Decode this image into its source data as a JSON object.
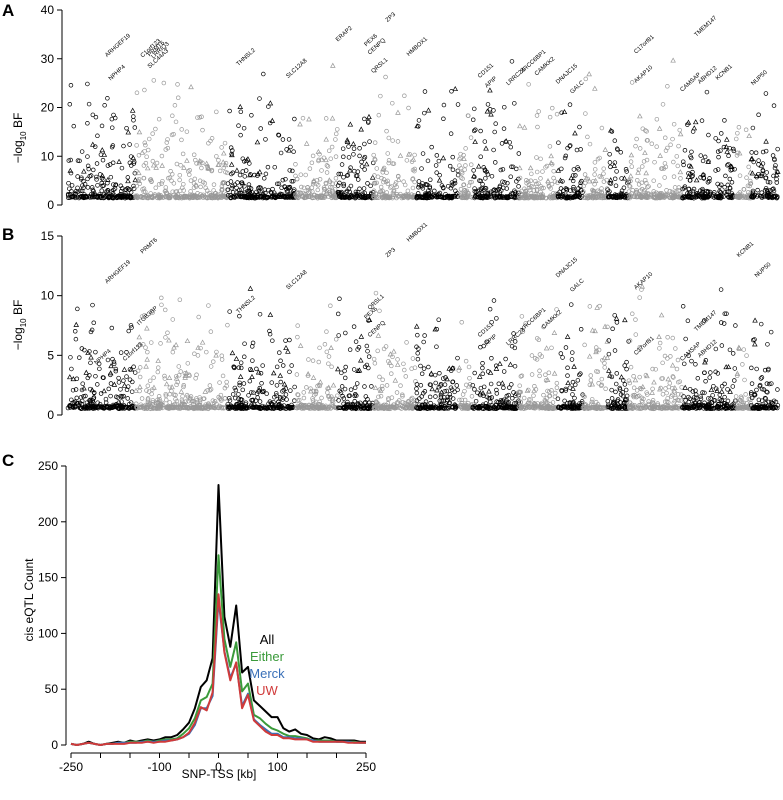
{
  "chart_data": [
    {
      "panel": "A",
      "type": "scatter",
      "ylabel_main": "−log",
      "ylabel_sub": "10",
      "ylabel_tail": " BF",
      "ylim": [
        0,
        40
      ],
      "yticks": [
        "0",
        "10",
        "20",
        "30",
        "40"
      ],
      "annotations": [
        {
          "text": "ARHGEF19",
          "x": 0.055,
          "y": 30.3
        },
        {
          "text": "C1orf123",
          "x": 0.105,
          "y": 30.2
        },
        {
          "text": "PRMT6",
          "x": 0.115,
          "y": 30.4
        },
        {
          "text": "LRRIQ3",
          "x": 0.12,
          "y": 30.0
        },
        {
          "text": "SLC44A3",
          "x": 0.115,
          "y": 28.0
        },
        {
          "text": "NPHP4",
          "x": 0.06,
          "y": 25.5
        },
        {
          "text": "THNSL2",
          "x": 0.24,
          "y": 28.5
        },
        {
          "text": "SLC12A8",
          "x": 0.31,
          "y": 26.0
        },
        {
          "text": "ERAP2",
          "x": 0.38,
          "y": 33.5
        },
        {
          "text": "ZP3",
          "x": 0.45,
          "y": 37.5
        },
        {
          "text": "PEX6",
          "x": 0.42,
          "y": 32.5
        },
        {
          "text": "CENPQ",
          "x": 0.425,
          "y": 30.8
        },
        {
          "text": "QRSL1",
          "x": 0.43,
          "y": 27.0
        },
        {
          "text": "HMBOX1",
          "x": 0.48,
          "y": 30.5
        },
        {
          "text": "CD151",
          "x": 0.58,
          "y": 26.0
        },
        {
          "text": "APIP",
          "x": 0.59,
          "y": 24.0
        },
        {
          "text": "LRRC23",
          "x": 0.62,
          "y": 24.5
        },
        {
          "text": "XRCC6BP1",
          "x": 0.64,
          "y": 27.0
        },
        {
          "text": "CAMKK2",
          "x": 0.66,
          "y": 26.5
        },
        {
          "text": "DNAJC15",
          "x": 0.69,
          "y": 24.8
        },
        {
          "text": "GALC",
          "x": 0.71,
          "y": 22.8
        },
        {
          "text": "C17orf81",
          "x": 0.8,
          "y": 31.0
        },
        {
          "text": "AKAP10",
          "x": 0.8,
          "y": 25.0
        },
        {
          "text": "TMEM147",
          "x": 0.885,
          "y": 34.5
        },
        {
          "text": "CAMSAP",
          "x": 0.865,
          "y": 23.2
        },
        {
          "text": "KCNB1",
          "x": 0.915,
          "y": 25.6
        },
        {
          "text": "ABHD12",
          "x": 0.89,
          "y": 24.8
        },
        {
          "text": "NUP50",
          "x": 0.965,
          "y": 24.5
        }
      ]
    },
    {
      "panel": "B",
      "type": "scatter",
      "ylabel_main": "−log",
      "ylabel_sub": "10",
      "ylabel_tail": " BF",
      "ylim": [
        0,
        15
      ],
      "yticks": [
        "0",
        "5",
        "10",
        "15"
      ],
      "annotations": [
        {
          "text": "ARHGEF19",
          "x": 0.055,
          "y": 11.0
        },
        {
          "text": "PRMT6",
          "x": 0.105,
          "y": 13.5
        },
        {
          "text": "ITGB3BP",
          "x": 0.1,
          "y": 7.5
        },
        {
          "text": "C1orf123",
          "x": 0.08,
          "y": 4.5
        },
        {
          "text": "NPHP4",
          "x": 0.04,
          "y": 4.2
        },
        {
          "text": "THNSL2",
          "x": 0.24,
          "y": 8.5
        },
        {
          "text": "SLC12A8",
          "x": 0.31,
          "y": 10.5
        },
        {
          "text": "ZP3",
          "x": 0.45,
          "y": 13.2
        },
        {
          "text": "HMBOX1",
          "x": 0.48,
          "y": 14.5
        },
        {
          "text": "QRSL1",
          "x": 0.425,
          "y": 8.8
        },
        {
          "text": "PEX6",
          "x": 0.42,
          "y": 8.0
        },
        {
          "text": "CENPQ",
          "x": 0.425,
          "y": 6.5
        },
        {
          "text": "CD151",
          "x": 0.58,
          "y": 6.5
        },
        {
          "text": "APIP",
          "x": 0.59,
          "y": 5.8
        },
        {
          "text": "LRRC23",
          "x": 0.62,
          "y": 5.8
        },
        {
          "text": "XRCC6BP1",
          "x": 0.64,
          "y": 7.0
        },
        {
          "text": "CAMKK2",
          "x": 0.67,
          "y": 7.2
        },
        {
          "text": "DNAJC15",
          "x": 0.69,
          "y": 11.5
        },
        {
          "text": "GALC",
          "x": 0.71,
          "y": 10.3
        },
        {
          "text": "AKAP10",
          "x": 0.8,
          "y": 10.5
        },
        {
          "text": "C17orf81",
          "x": 0.8,
          "y": 5.0
        },
        {
          "text": "TMEM147",
          "x": 0.885,
          "y": 7.0
        },
        {
          "text": "CAMSAP",
          "x": 0.865,
          "y": 4.5
        },
        {
          "text": "ABHD12",
          "x": 0.89,
          "y": 4.8
        },
        {
          "text": "KCNB1",
          "x": 0.945,
          "y": 13.2
        },
        {
          "text": "NUP50",
          "x": 0.97,
          "y": 11.5
        }
      ]
    },
    {
      "panel": "C",
      "type": "line",
      "xlabel": "SNP-TSS [kb]",
      "ylabel": "cis eQTL Count",
      "xlim": [
        -250,
        250
      ],
      "ylim": [
        0,
        250
      ],
      "xticks": [
        "-250",
        "-100",
        "0",
        "100",
        "250"
      ],
      "yticks": [
        "0",
        "50",
        "100",
        "150",
        "200",
        "250"
      ],
      "x": [
        -250,
        -240,
        -230,
        -220,
        -210,
        -200,
        -190,
        -180,
        -170,
        -160,
        -150,
        -140,
        -130,
        -120,
        -110,
        -100,
        -90,
        -80,
        -70,
        -60,
        -50,
        -40,
        -30,
        -20,
        -10,
        0,
        10,
        20,
        30,
        40,
        50,
        60,
        70,
        80,
        90,
        100,
        110,
        120,
        130,
        140,
        150,
        160,
        170,
        180,
        190,
        200,
        210,
        220,
        230,
        240,
        250
      ],
      "series": [
        {
          "name": "All",
          "color": "#000000",
          "values": [
            1,
            0,
            1,
            3,
            1,
            0,
            1,
            2,
            3,
            2,
            4,
            3,
            4,
            5,
            4,
            5,
            7,
            7,
            9,
            14,
            20,
            33,
            52,
            58,
            78,
            233,
            115,
            88,
            125,
            65,
            70,
            40,
            35,
            30,
            25,
            25,
            15,
            12,
            14,
            10,
            9,
            6,
            5,
            7,
            6,
            4,
            4,
            4,
            4,
            3,
            3
          ]
        },
        {
          "name": "Either",
          "color": "#3a9a3a",
          "values": [
            1,
            0,
            1,
            2,
            1,
            0,
            1,
            1,
            2,
            2,
            3,
            3,
            3,
            4,
            3,
            4,
            5,
            5,
            6,
            10,
            15,
            24,
            40,
            43,
            55,
            170,
            95,
            70,
            92,
            48,
            55,
            27,
            24,
            19,
            15,
            13,
            10,
            8,
            8,
            7,
            6,
            4,
            4,
            4,
            4,
            3,
            3,
            3,
            3,
            2,
            2
          ]
        },
        {
          "name": "Merck",
          "color": "#3a70b8",
          "values": [
            1,
            0,
            1,
            2,
            1,
            0,
            1,
            1,
            2,
            2,
            2,
            2,
            3,
            3,
            3,
            3,
            4,
            4,
            5,
            7,
            10,
            18,
            33,
            33,
            44,
            130,
            84,
            60,
            73,
            35,
            46,
            23,
            18,
            14,
            10,
            10,
            7,
            7,
            6,
            6,
            5,
            4,
            3,
            3,
            3,
            3,
            3,
            3,
            2,
            2,
            2
          ]
        },
        {
          "name": "UW",
          "color": "#d03a3a",
          "values": [
            1,
            0,
            1,
            2,
            1,
            0,
            1,
            1,
            1,
            1,
            2,
            2,
            2,
            3,
            2,
            3,
            3,
            4,
            5,
            7,
            11,
            20,
            34,
            31,
            47,
            135,
            83,
            58,
            74,
            33,
            45,
            22,
            17,
            12,
            9,
            9,
            6,
            6,
            5,
            5,
            5,
            3,
            3,
            3,
            3,
            3,
            3,
            2,
            2,
            2,
            2
          ]
        }
      ]
    }
  ],
  "labels": {
    "a": "A",
    "b": "B",
    "c": "C"
  }
}
